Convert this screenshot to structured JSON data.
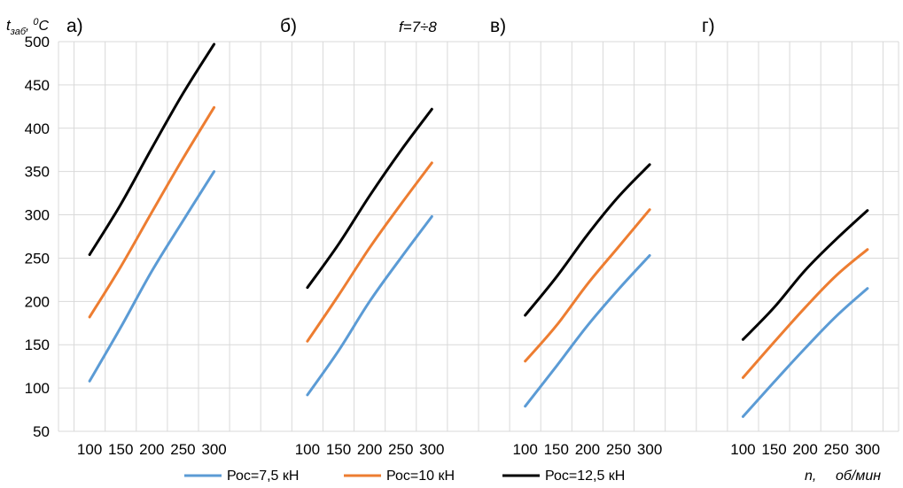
{
  "chart_data": {
    "type": "line",
    "ylabel_main": "t",
    "ylabel_sub": "заб",
    "ylabel_unit_sup": "0",
    "ylabel_unit": "C",
    "ylim": [
      50,
      500
    ],
    "yticks": [
      50,
      100,
      150,
      200,
      250,
      300,
      350,
      400,
      450,
      500
    ],
    "xticks": [
      100,
      150,
      200,
      250,
      300
    ],
    "xlabel_var": "n,",
    "xlabel_unit": "об/мин",
    "annotation": "f=7÷8",
    "grid": true,
    "legend_position": "bottom",
    "series_names": [
      "Рос=7,5 кН",
      "Рос=10 кН",
      "Рос=12,5 кН"
    ],
    "series_colors": [
      "#5b9bd5",
      "#ed7d31",
      "#000000"
    ],
    "panels": [
      {
        "label": "а)",
        "x": [
          100,
          150,
          200,
          250,
          300
        ],
        "series": [
          {
            "name": "Рос=7,5 кН",
            "values": [
              108,
              170,
              235,
              293,
              350
            ]
          },
          {
            "name": "Рос=10 кН",
            "values": [
              182,
              240,
              303,
              365,
              424
            ]
          },
          {
            "name": "Рос=12,5 кН",
            "values": [
              254,
              312,
              377,
              440,
              497
            ]
          }
        ]
      },
      {
        "label": "б)",
        "x": [
          100,
          150,
          200,
          250,
          300
        ],
        "series": [
          {
            "name": "Рос=7,5 кН",
            "values": [
              92,
              143,
              200,
              250,
              298
            ]
          },
          {
            "name": "Рос=10 кН",
            "values": [
              154,
              207,
              262,
              312,
              360
            ]
          },
          {
            "name": "Рос=12,5 кН",
            "values": [
              216,
              266,
              322,
              374,
              422
            ]
          }
        ]
      },
      {
        "label": "в)",
        "x": [
          100,
          150,
          200,
          250,
          300
        ],
        "series": [
          {
            "name": "Рос=7,5 кН",
            "values": [
              79,
              125,
              172,
              214,
              253
            ]
          },
          {
            "name": "Рос=10 кН",
            "values": [
              131,
              172,
              220,
              263,
              306
            ]
          },
          {
            "name": "Рос=12,5 кН",
            "values": [
              184,
              228,
              277,
              321,
              358
            ]
          }
        ]
      },
      {
        "label": "г)",
        "x": [
          100,
          150,
          200,
          250,
          300
        ],
        "series": [
          {
            "name": "Рос=7,5 кН",
            "values": [
              67,
              107,
              146,
              183,
              215
            ]
          },
          {
            "name": "Рос=10 кН",
            "values": [
              112,
              153,
              193,
              230,
              260
            ]
          },
          {
            "name": "Рос=12,5 кН",
            "values": [
              156,
              193,
              236,
              272,
              305
            ]
          }
        ]
      }
    ]
  }
}
